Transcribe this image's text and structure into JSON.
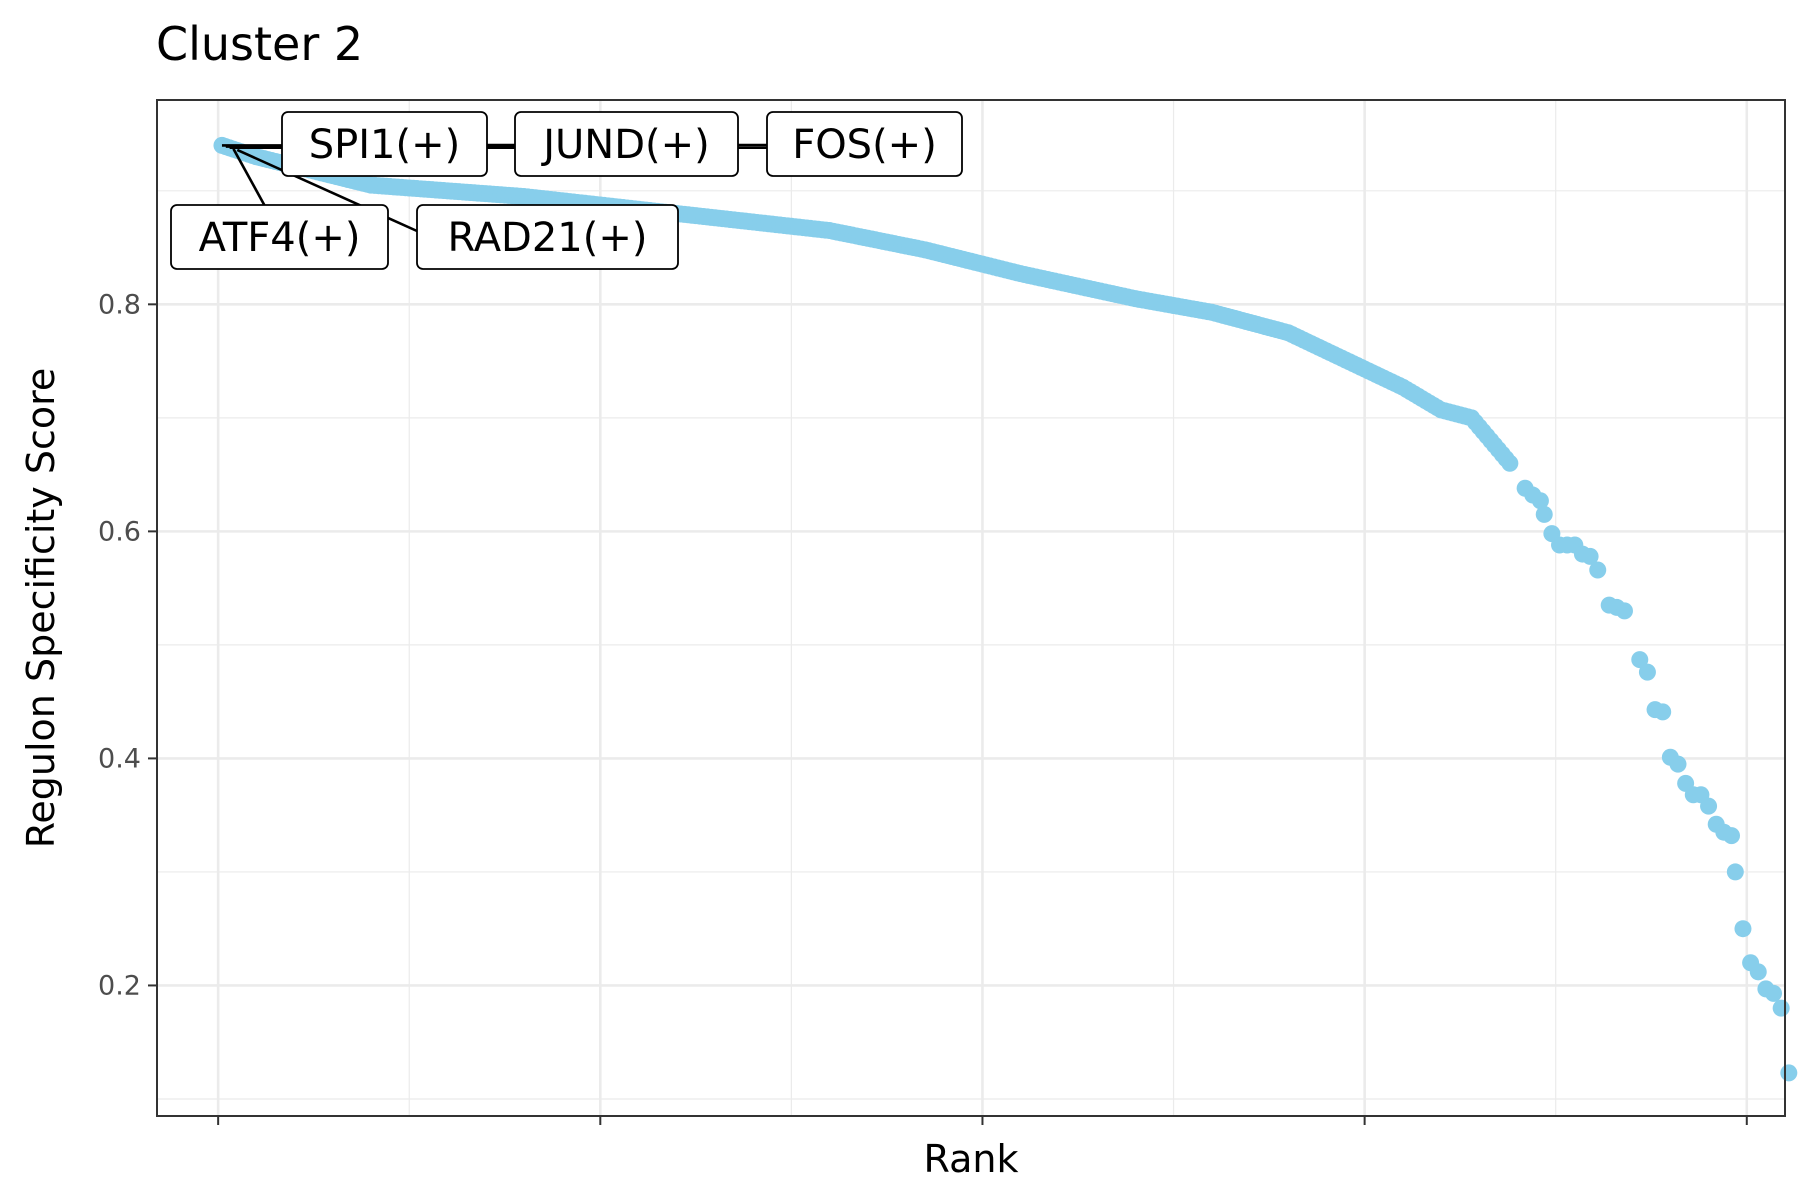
{
  "chart_data": {
    "type": "scatter",
    "title": "Cluster 2",
    "xlabel": "Rank",
    "ylabel": "Regulon Specificity Score",
    "xlim": [
      -16,
      410
    ],
    "ylim": [
      0.085,
      0.98
    ],
    "x_ticks": [
      0,
      100,
      200,
      300,
      400
    ],
    "x_tick_labels": [
      "",
      "",
      "",
      "",
      ""
    ],
    "y_ticks": [
      0.2,
      0.4,
      0.6,
      0.8
    ],
    "y_tick_labels": [
      "0.2",
      "0.4",
      "0.6",
      "0.8"
    ],
    "grid": true,
    "point_color": "#87CEEB",
    "labeled_points": [
      {
        "label": "SPI1(+)",
        "x": 1,
        "y": 0.94
      },
      {
        "label": "JUND(+)",
        "x": 2,
        "y": 0.939
      },
      {
        "label": "FOS(+)",
        "x": 3,
        "y": 0.938
      },
      {
        "label": "ATF4(+)",
        "x": 4,
        "y": 0.937
      },
      {
        "label": "RAD21(+)",
        "x": 5,
        "y": 0.936
      }
    ],
    "series": [
      {
        "curve_knots": [
          [
            1,
            0.94
          ],
          [
            10,
            0.93
          ],
          [
            40,
            0.905
          ],
          [
            80,
            0.895
          ],
          [
            120,
            0.88
          ],
          [
            160,
            0.865
          ],
          [
            185,
            0.848
          ],
          [
            210,
            0.827
          ],
          [
            240,
            0.805
          ],
          [
            260,
            0.793
          ],
          [
            280,
            0.775
          ],
          [
            300,
            0.743
          ],
          [
            310,
            0.727
          ],
          [
            320,
            0.707
          ],
          [
            328,
            0.7
          ],
          [
            338,
            0.66
          ]
        ],
        "points": [
          [
            1,
            0.94
          ],
          [
            3,
            0.935
          ],
          [
            338,
            0.66
          ],
          [
            342,
            0.638
          ],
          [
            344,
            0.632
          ],
          [
            346,
            0.627
          ],
          [
            347,
            0.615
          ],
          [
            349,
            0.598
          ],
          [
            351,
            0.588
          ],
          [
            353,
            0.588
          ],
          [
            355,
            0.588
          ],
          [
            357,
            0.58
          ],
          [
            359,
            0.578
          ],
          [
            361,
            0.566
          ],
          [
            364,
            0.535
          ],
          [
            366,
            0.533
          ],
          [
            368,
            0.53
          ],
          [
            372,
            0.487
          ],
          [
            374,
            0.476
          ],
          [
            376,
            0.443
          ],
          [
            378,
            0.441
          ],
          [
            380,
            0.401
          ],
          [
            382,
            0.395
          ],
          [
            384,
            0.378
          ],
          [
            386,
            0.368
          ],
          [
            388,
            0.368
          ],
          [
            390,
            0.358
          ],
          [
            392,
            0.342
          ],
          [
            394,
            0.335
          ],
          [
            396,
            0.332
          ],
          [
            397,
            0.3
          ],
          [
            399,
            0.25
          ],
          [
            401,
            0.22
          ],
          [
            403,
            0.212
          ],
          [
            405,
            0.197
          ],
          [
            407,
            0.193
          ],
          [
            409,
            0.18
          ],
          [
            411,
            0.123
          ]
        ]
      }
    ]
  }
}
